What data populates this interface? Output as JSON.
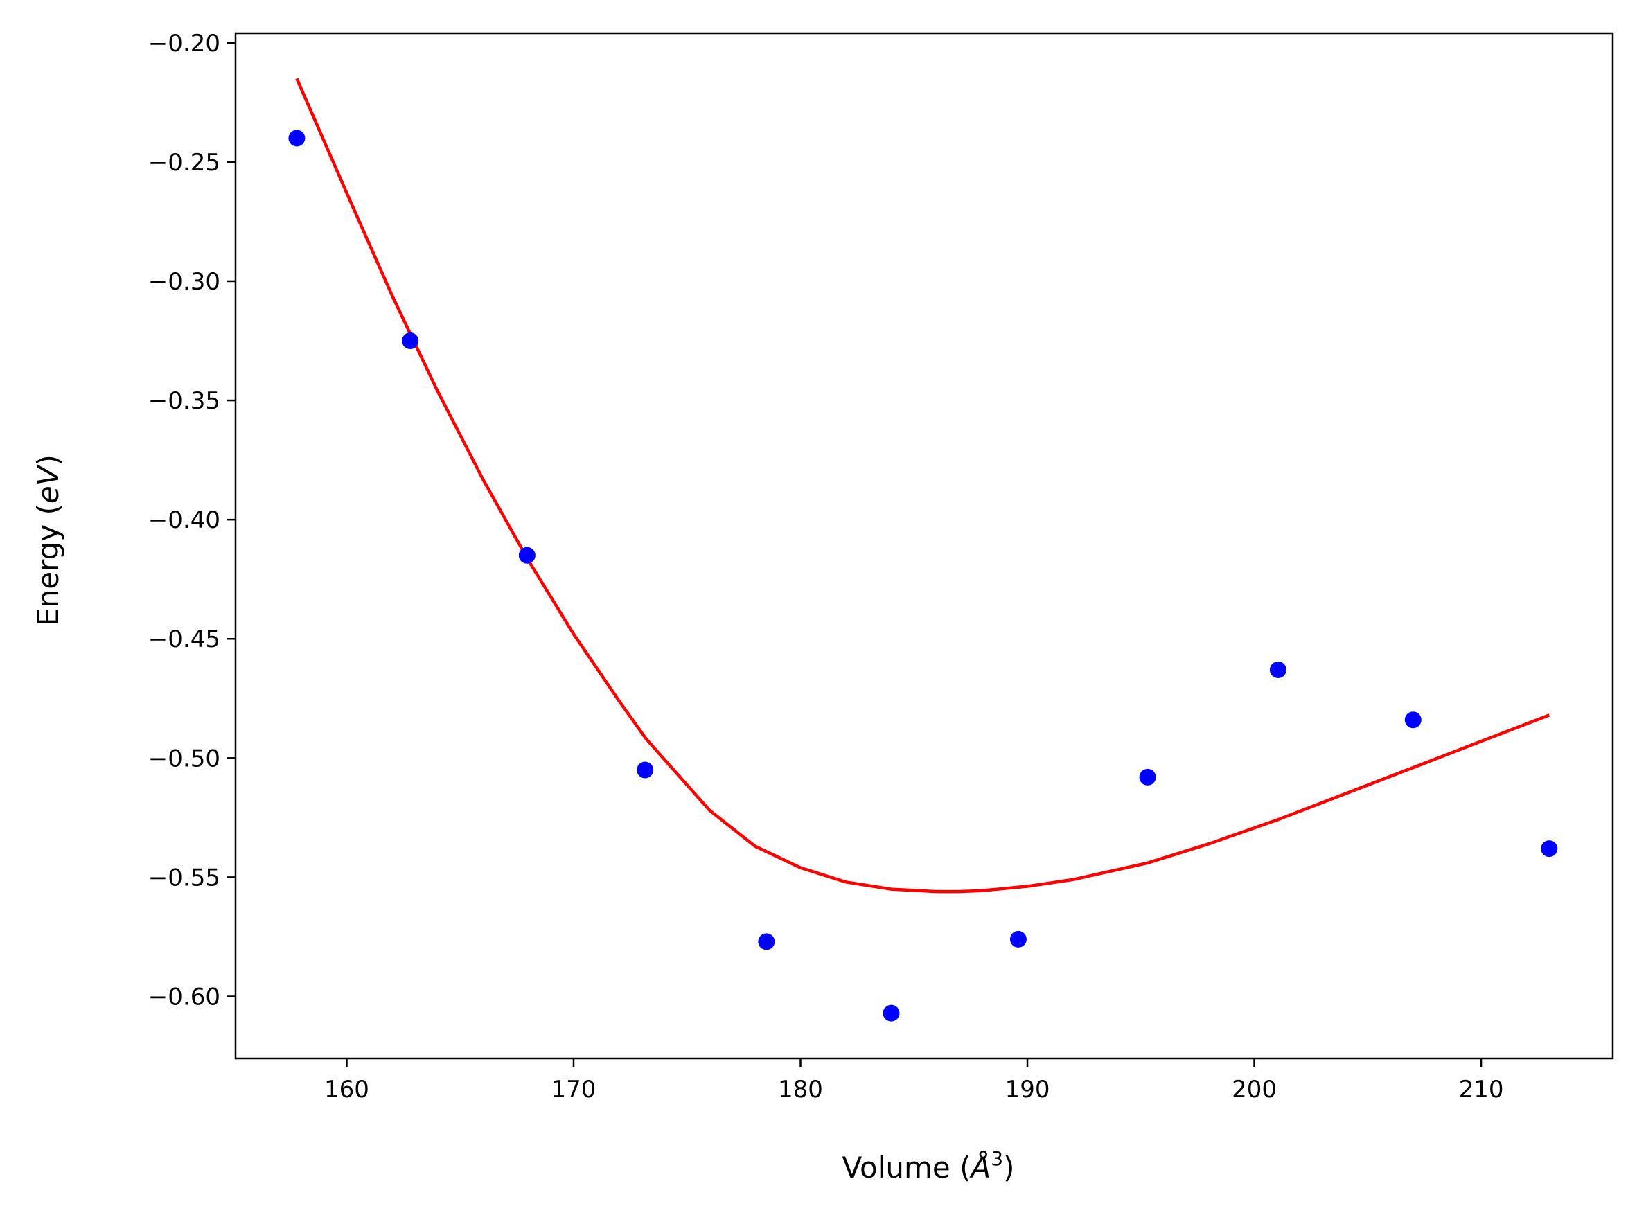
{
  "chart_data": {
    "type": "scatter",
    "xlabel": {
      "prefix": "Volume (",
      "unit": "Å",
      "power": "3",
      "suffix": ")"
    },
    "ylabel": {
      "prefix": "Energy (",
      "unit": "eV",
      "suffix": ")"
    },
    "xlim": [
      155.1,
      215.8
    ],
    "ylim": [
      -0.626,
      -0.196
    ],
    "x_ticks": [
      160,
      170,
      180,
      190,
      200,
      210
    ],
    "x_tick_labels": [
      "160",
      "170",
      "180",
      "190",
      "200",
      "210"
    ],
    "y_ticks": [
      -0.2,
      -0.25,
      -0.3,
      -0.35,
      -0.4,
      -0.45,
      -0.5,
      -0.55,
      -0.6
    ],
    "y_tick_labels": [
      "−0.20",
      "−0.25",
      "−0.30",
      "−0.35",
      "−0.40",
      "−0.45",
      "−0.50",
      "−0.55",
      "−0.60"
    ],
    "grid": false,
    "points": {
      "color": "#0000ff",
      "x": [
        157.8,
        162.8,
        167.95,
        173.15,
        178.5,
        184.0,
        189.6,
        195.3,
        201.05,
        207.0,
        213.0
      ],
      "y": [
        -0.24,
        -0.325,
        -0.415,
        -0.505,
        -0.577,
        -0.607,
        -0.576,
        -0.508,
        -0.463,
        -0.484,
        -0.538
      ]
    },
    "fit_curve": {
      "color": "#ff0000",
      "x": [
        157.8,
        160,
        162,
        164,
        166,
        168,
        170,
        172,
        173.2,
        176,
        178,
        180,
        182,
        184,
        186,
        187,
        188,
        190,
        192,
        195.3,
        198,
        201,
        204,
        207,
        210,
        213
      ],
      "y": [
        -0.215,
        -0.263,
        -0.306,
        -0.346,
        -0.383,
        -0.417,
        -0.448,
        -0.476,
        -0.492,
        -0.522,
        -0.537,
        -0.546,
        -0.552,
        -0.555,
        -0.556,
        -0.556,
        -0.5556,
        -0.5538,
        -0.551,
        -0.544,
        -0.536,
        -0.526,
        -0.515,
        -0.504,
        -0.493,
        -0.482
      ]
    }
  }
}
